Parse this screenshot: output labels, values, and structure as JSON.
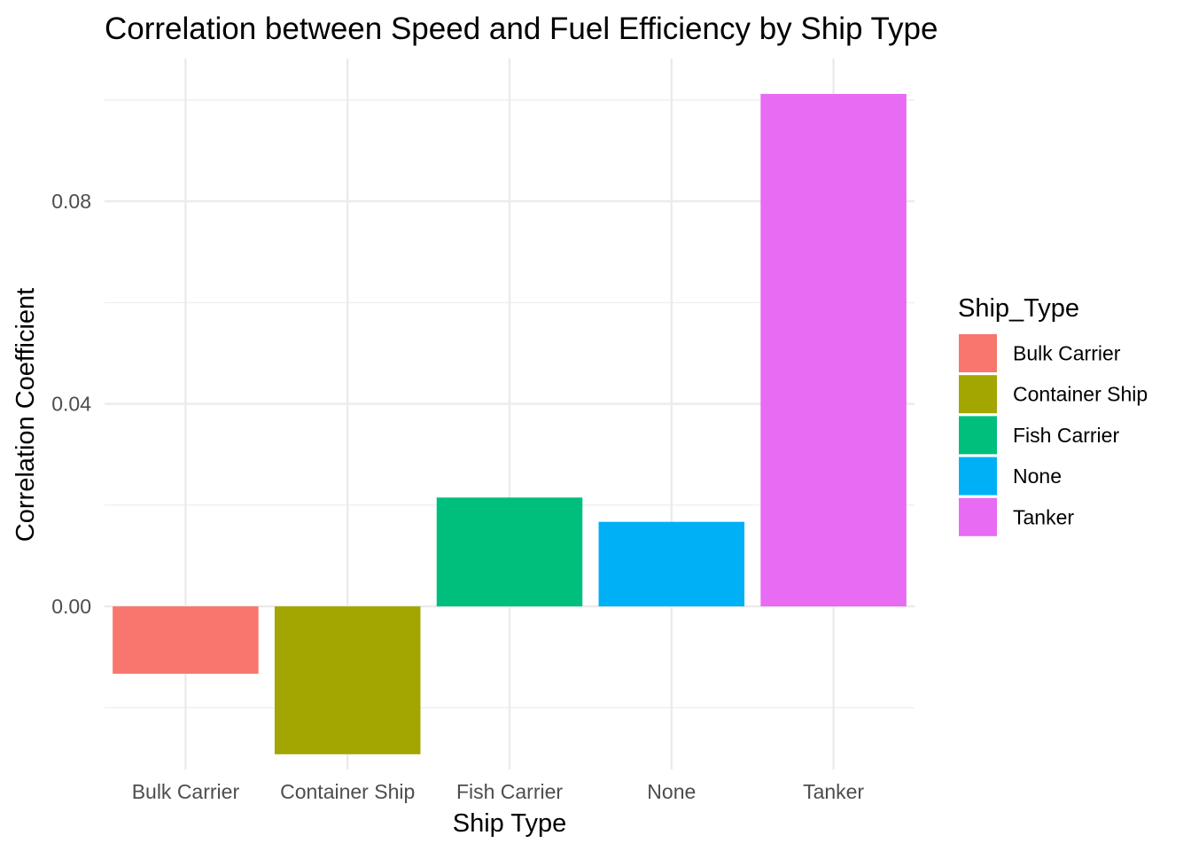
{
  "chart_data": {
    "type": "bar",
    "title": "Correlation between Speed and Fuel Efficiency by Ship Type",
    "xlabel": "Ship Type",
    "ylabel": "Correlation Coefficient",
    "categories": [
      "Bulk Carrier",
      "Container Ship",
      "Fish Carrier",
      "None",
      "Tanker"
    ],
    "values": [
      -0.0133,
      -0.0292,
      0.0215,
      0.0167,
      0.1012
    ],
    "colors": [
      "#F8766D",
      "#A3A500",
      "#00BF7D",
      "#00B0F6",
      "#E76BF3"
    ],
    "ylim": [
      -0.0322,
      0.1082
    ],
    "yticks": [
      0.0,
      0.04,
      0.08
    ],
    "ytick_labels": [
      "0.00",
      "0.04",
      "0.08"
    ],
    "grid": true,
    "legend": {
      "title": "Ship_Type",
      "position": "right",
      "entries": [
        "Bulk Carrier",
        "Container Ship",
        "Fish Carrier",
        "None",
        "Tanker"
      ]
    }
  }
}
